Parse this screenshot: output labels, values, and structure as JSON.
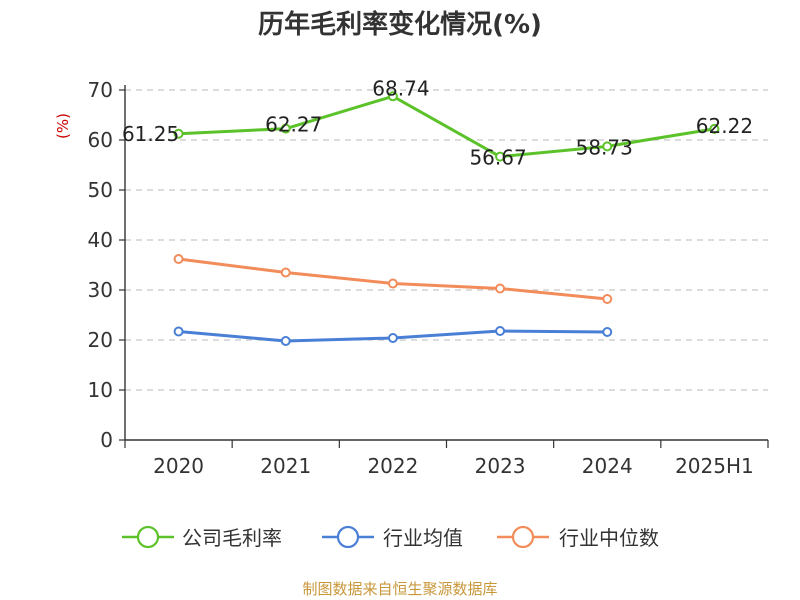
{
  "chart_data": {
    "type": "line",
    "title": "历年毛利率变化情况(%)",
    "ylabel": "(%)",
    "xlabel": "",
    "categories": [
      "2020",
      "2021",
      "2022",
      "2023",
      "2024",
      "2025H1"
    ],
    "ylim": [
      0,
      70
    ],
    "yticks": [
      0,
      10,
      20,
      30,
      40,
      50,
      60,
      70
    ],
    "grid": true,
    "legend_position": "bottom",
    "series": [
      {
        "name": "公司毛利率",
        "color": "#5cc22a",
        "values": [
          61.25,
          62.27,
          68.74,
          56.67,
          58.73,
          62.22
        ],
        "labels": [
          "61.25",
          "62.27",
          "68.74",
          "56.67",
          "58.73",
          "62.22"
        ]
      },
      {
        "name": "行业均值",
        "color": "#4a7fd6",
        "values": [
          21.7,
          19.8,
          20.4,
          21.8,
          21.6,
          null
        ]
      },
      {
        "name": "行业中位数",
        "color": "#f28c5a",
        "values": [
          36.2,
          33.5,
          31.3,
          30.3,
          28.2,
          null
        ]
      }
    ]
  },
  "source_text": "制图数据来自恒生聚源数据库"
}
